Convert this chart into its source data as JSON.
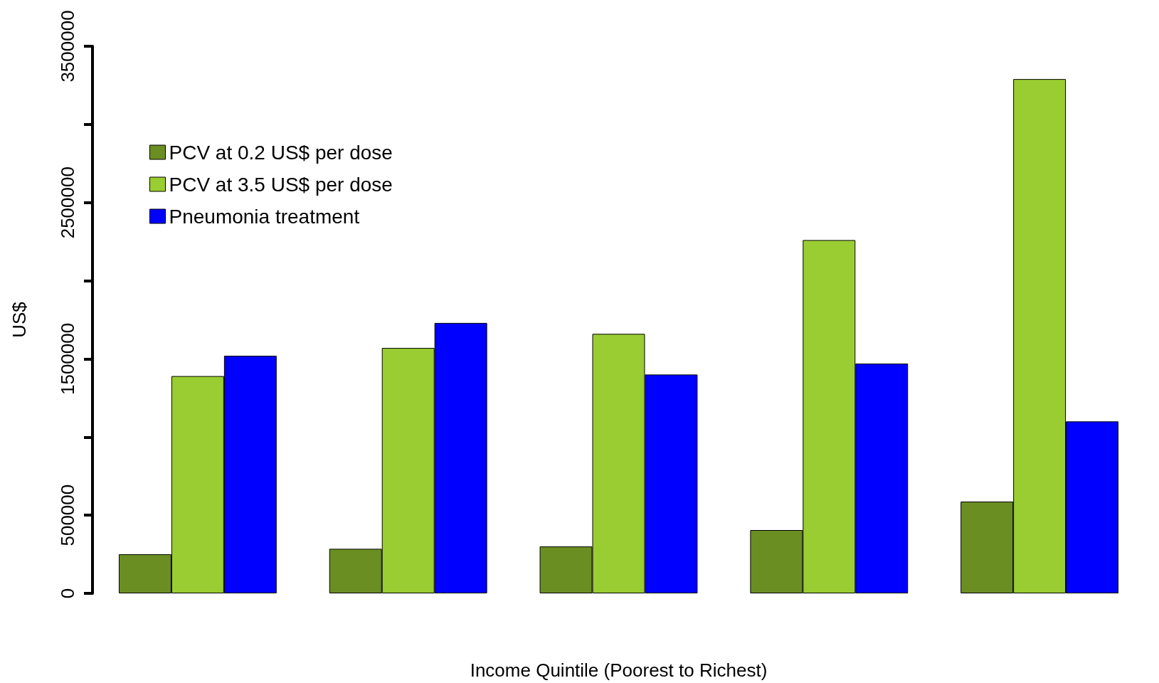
{
  "chart_data": {
    "type": "bar",
    "xlabel": "Income Quintile (Poorest to Richest)",
    "ylabel": "US$",
    "categories": [
      null,
      null,
      null,
      null,
      null
    ],
    "series": [
      {
        "name": "PCV at 0.2 US$ per dose",
        "color": "#6b8e23",
        "values": [
          250000,
          285000,
          300000,
          405000,
          587000
        ]
      },
      {
        "name": "PCV at 3.5 US$ per dose",
        "color": "#9acd32",
        "values": [
          1390000,
          1570000,
          1660000,
          2260000,
          3290000
        ]
      },
      {
        "name": "Pneumonia treatment",
        "color": "#0000ff",
        "values": [
          1520000,
          1730000,
          1400000,
          1470000,
          1100000
        ]
      }
    ],
    "ylim": [
      0,
      3500000
    ],
    "yticks": [
      0,
      500000,
      {
        "value": 1000000,
        "label": null
      },
      1500000,
      {
        "value": 2000000,
        "label": null
      },
      2500000,
      {
        "value": 3000000,
        "label": null
      },
      3500000
    ],
    "grid": false,
    "legend": "top left"
  }
}
